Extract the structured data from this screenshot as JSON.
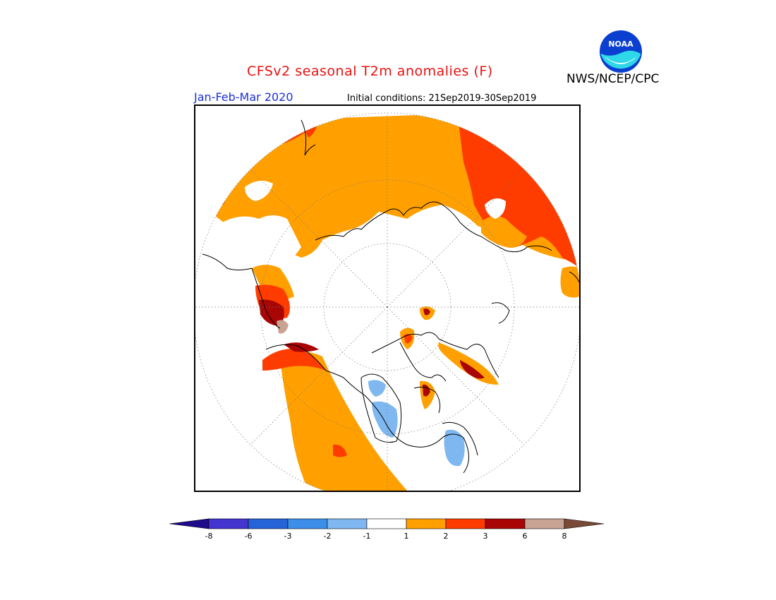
{
  "header": {
    "title": "CFSv2 seasonal T2m anomalies (F)",
    "agency": "NWS/NCEP/CPC",
    "logo_text": "NOAA",
    "season": "Jan-Feb-Mar 2020",
    "initial_conditions": "Initial conditions: 21Sep2019-30Sep2019"
  },
  "legend": {
    "colors": [
      "#1e0b8c",
      "#4434d0",
      "#2563d8",
      "#3d8ee8",
      "#7fb8f1",
      "#ffffff",
      "#ffa000",
      "#ff3c00",
      "#a90505",
      "#c8a393",
      "#7a4a38"
    ],
    "labels": [
      "-8",
      "-6",
      "-3",
      "-2",
      "-1",
      "1",
      "2",
      "3",
      "6",
      "8"
    ]
  },
  "colors": {
    "orange": "#ffa000",
    "red": "#ff3c00",
    "darkred": "#a90505",
    "tan": "#c8a393",
    "lightblue": "#7fb8f1",
    "title": "#e8100f",
    "season": "#1c31d6"
  }
}
